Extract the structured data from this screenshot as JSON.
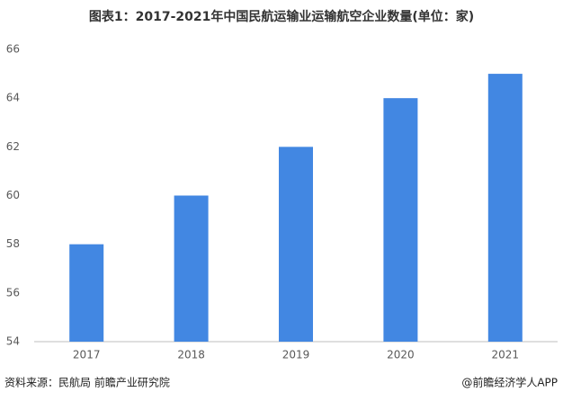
{
  "chart_data": {
    "type": "bar",
    "title": "图表1：2017-2021年中国民航运输业运输航空企业数量(单位：家)",
    "categories": [
      "2017",
      "2018",
      "2019",
      "2020",
      "2021"
    ],
    "values": [
      58,
      60,
      62,
      64,
      65
    ],
    "color": "#4287e2",
    "ylim": [
      54,
      66
    ],
    "yticks": [
      54,
      56,
      58,
      60,
      62,
      64,
      66
    ],
    "grid": false,
    "source": "资料来源：民航局 前瞻产业研究院",
    "credit": "@前瞻经济学人APP"
  }
}
